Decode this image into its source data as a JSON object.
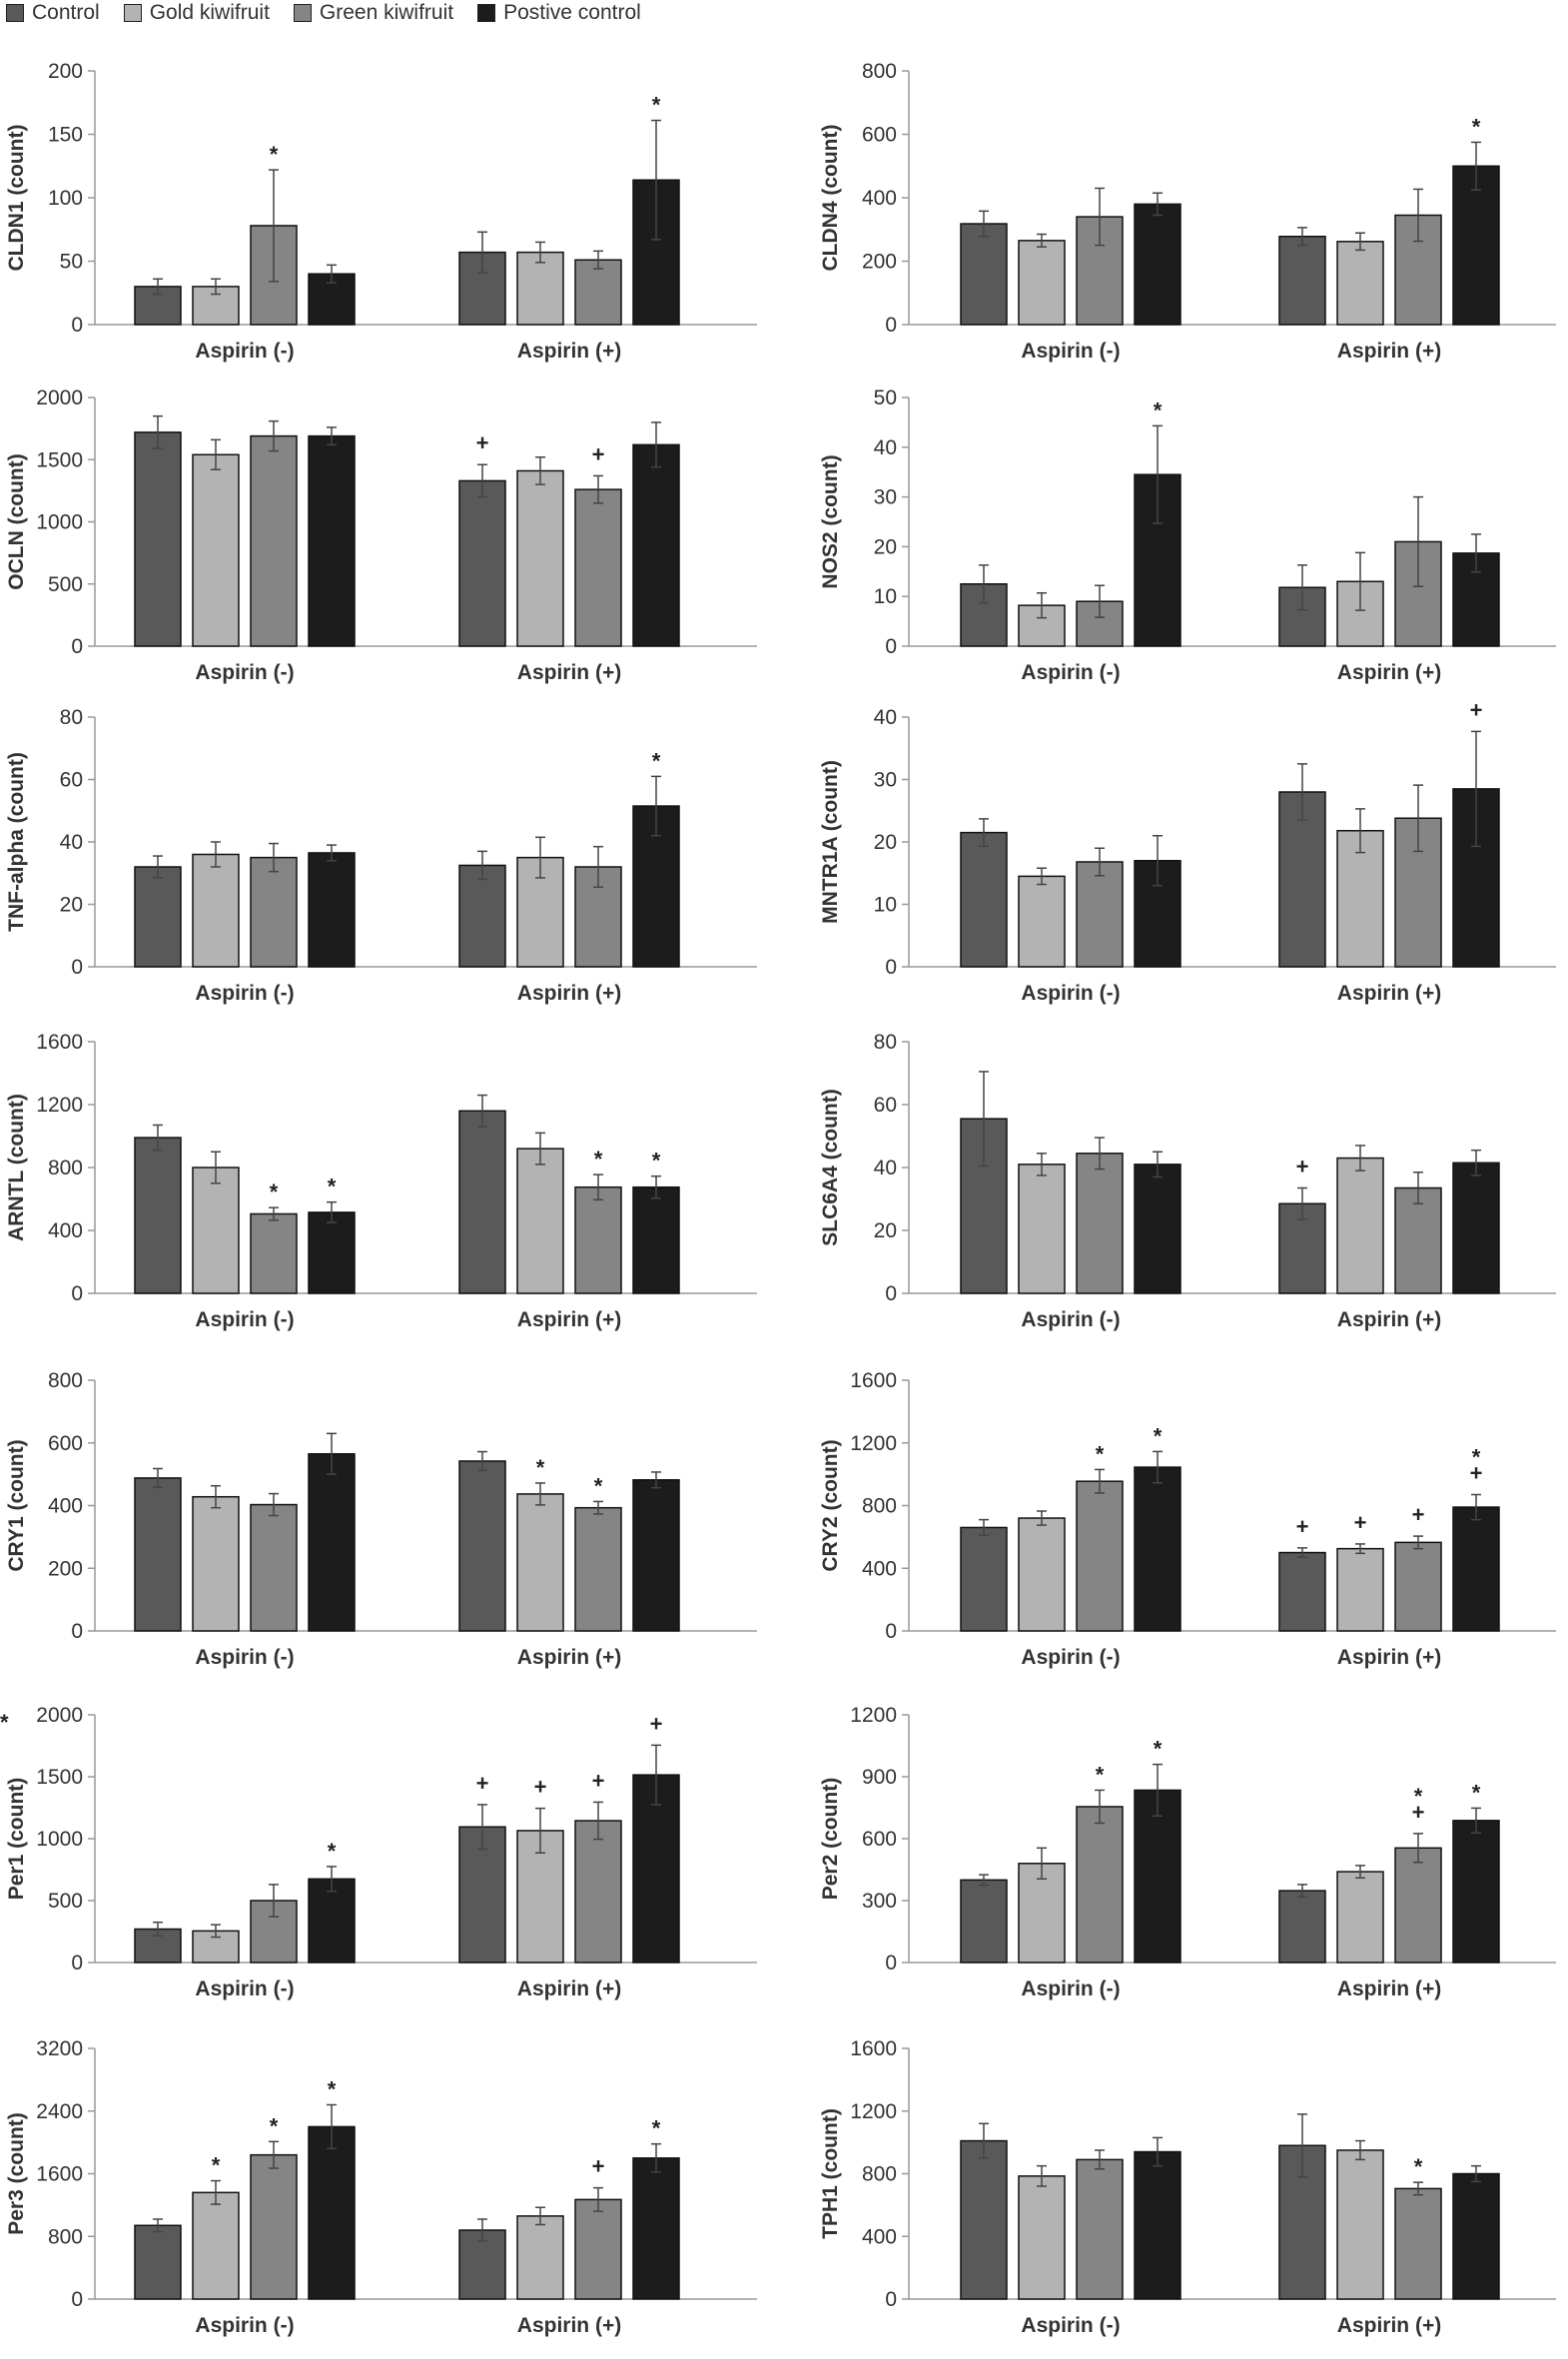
{
  "legend": {
    "items": [
      {
        "label": "Control",
        "color": "#595959"
      },
      {
        "label": "Gold kiwifruit",
        "color": "#b3b3b3"
      },
      {
        "label": "Green kiwifruit",
        "color": "#858585"
      },
      {
        "label": "Postive control",
        "color": "#1c1c1c"
      }
    ]
  },
  "stray_mark": "*",
  "chart_data": [
    {
      "type": "bar",
      "ylabel": "CLDN1 (count)",
      "ylim": [
        0,
        200
      ],
      "yticks": [
        0,
        50,
        100,
        150,
        200
      ],
      "categories": [
        "Aspirin (-)",
        "Aspirin (+)"
      ],
      "series": [
        {
          "name": "Control",
          "values": [
            30,
            57
          ],
          "errors": [
            6,
            16
          ],
          "marks": [
            "",
            ""
          ]
        },
        {
          "name": "Gold kiwifruit",
          "values": [
            30,
            57
          ],
          "errors": [
            6,
            8
          ],
          "marks": [
            "",
            ""
          ]
        },
        {
          "name": "Green kiwifruit",
          "values": [
            78,
            51
          ],
          "errors": [
            44,
            7
          ],
          "marks": [
            "*",
            ""
          ]
        },
        {
          "name": "Postive control",
          "values": [
            40,
            114
          ],
          "errors": [
            7,
            47
          ],
          "marks": [
            "",
            "*"
          ]
        }
      ]
    },
    {
      "type": "bar",
      "ylabel": "CLDN4 (count)",
      "ylim": [
        0,
        800
      ],
      "yticks": [
        0,
        200,
        400,
        600,
        800
      ],
      "categories": [
        "Aspirin (-)",
        "Aspirin (+)"
      ],
      "series": [
        {
          "name": "Control",
          "values": [
            318,
            278
          ],
          "errors": [
            40,
            28
          ],
          "marks": [
            "",
            ""
          ]
        },
        {
          "name": "Gold kiwifruit",
          "values": [
            265,
            262
          ],
          "errors": [
            20,
            27
          ],
          "marks": [
            "",
            ""
          ]
        },
        {
          "name": "Green kiwifruit",
          "values": [
            340,
            345
          ],
          "errors": [
            90,
            82
          ],
          "marks": [
            "",
            ""
          ]
        },
        {
          "name": "Postive control",
          "values": [
            380,
            500
          ],
          "errors": [
            35,
            75
          ],
          "marks": [
            "",
            "*"
          ]
        }
      ]
    },
    {
      "type": "bar",
      "ylabel": "OCLN (count)",
      "ylim": [
        0,
        2000
      ],
      "yticks": [
        0,
        500,
        1000,
        1500,
        2000
      ],
      "categories": [
        "Aspirin (-)",
        "Aspirin (+)"
      ],
      "series": [
        {
          "name": "Control",
          "values": [
            1720,
            1330
          ],
          "errors": [
            130,
            130
          ],
          "marks": [
            "",
            "+"
          ]
        },
        {
          "name": "Gold kiwifruit",
          "values": [
            1540,
            1410
          ],
          "errors": [
            120,
            110
          ],
          "marks": [
            "",
            ""
          ]
        },
        {
          "name": "Green kiwifruit",
          "values": [
            1690,
            1260
          ],
          "errors": [
            120,
            110
          ],
          "marks": [
            "",
            "+"
          ]
        },
        {
          "name": "Postive control",
          "values": [
            1690,
            1620
          ],
          "errors": [
            70,
            180
          ],
          "marks": [
            "",
            ""
          ]
        }
      ]
    },
    {
      "type": "bar",
      "ylabel": "NOS2 (count)",
      "ylim": [
        0,
        50
      ],
      "yticks": [
        0,
        10,
        20,
        30,
        40,
        50
      ],
      "categories": [
        "Aspirin (-)",
        "Aspirin (+)"
      ],
      "series": [
        {
          "name": "Control",
          "values": [
            12.5,
            11.8
          ],
          "errors": [
            3.8,
            4.5
          ],
          "marks": [
            "",
            ""
          ]
        },
        {
          "name": "Gold kiwifruit",
          "values": [
            8.2,
            13
          ],
          "errors": [
            2.5,
            5.8
          ],
          "marks": [
            "",
            ""
          ]
        },
        {
          "name": "Green kiwifruit",
          "values": [
            9,
            21
          ],
          "errors": [
            3.2,
            9
          ],
          "marks": [
            "",
            ""
          ]
        },
        {
          "name": "Postive control",
          "values": [
            34.5,
            18.7
          ],
          "errors": [
            9.8,
            3.8
          ],
          "marks": [
            "*",
            ""
          ]
        }
      ]
    },
    {
      "type": "bar",
      "ylabel": "TNF-alpha (count)",
      "ylim": [
        0,
        80
      ],
      "yticks": [
        0,
        20,
        40,
        60,
        80
      ],
      "categories": [
        "Aspirin (-)",
        "Aspirin (+)"
      ],
      "series": [
        {
          "name": "Control",
          "values": [
            32,
            32.5
          ],
          "errors": [
            3.5,
            4.5
          ],
          "marks": [
            "",
            ""
          ]
        },
        {
          "name": "Gold kiwifruit",
          "values": [
            36,
            35
          ],
          "errors": [
            4,
            6.5
          ],
          "marks": [
            "",
            ""
          ]
        },
        {
          "name": "Green kiwifruit",
          "values": [
            35,
            32
          ],
          "errors": [
            4.5,
            6.5
          ],
          "marks": [
            "",
            ""
          ]
        },
        {
          "name": "Postive control",
          "values": [
            36.5,
            51.5
          ],
          "errors": [
            2.5,
            9.5
          ],
          "marks": [
            "",
            "*"
          ]
        }
      ]
    },
    {
      "type": "bar",
      "ylabel": "MNTR1A (count)",
      "ylim": [
        0,
        40
      ],
      "yticks": [
        0,
        10,
        20,
        30,
        40
      ],
      "categories": [
        "Aspirin (-)",
        "Aspirin (+)"
      ],
      "series": [
        {
          "name": "Control",
          "values": [
            21.5,
            28
          ],
          "errors": [
            2.2,
            4.5
          ],
          "marks": [
            "",
            ""
          ]
        },
        {
          "name": "Gold kiwifruit",
          "values": [
            14.5,
            21.8
          ],
          "errors": [
            1.3,
            3.5
          ],
          "marks": [
            "",
            ""
          ]
        },
        {
          "name": "Green kiwifruit",
          "values": [
            16.8,
            23.8
          ],
          "errors": [
            2.2,
            5.3
          ],
          "marks": [
            "",
            ""
          ]
        },
        {
          "name": "Postive control",
          "values": [
            17,
            28.5
          ],
          "errors": [
            4,
            9.2
          ],
          "marks": [
            "",
            "+"
          ]
        }
      ]
    },
    {
      "type": "bar",
      "ylabel": "ARNTL (count)",
      "ylim": [
        0,
        1600
      ],
      "yticks": [
        0,
        400,
        800,
        1200,
        1600
      ],
      "categories": [
        "Aspirin (-)",
        "Aspirin (+)"
      ],
      "series": [
        {
          "name": "Control",
          "values": [
            990,
            1160
          ],
          "errors": [
            80,
            100
          ],
          "marks": [
            "",
            ""
          ]
        },
        {
          "name": "Gold kiwifruit",
          "values": [
            800,
            920
          ],
          "errors": [
            100,
            100
          ],
          "marks": [
            "",
            ""
          ]
        },
        {
          "name": "Green kiwifruit",
          "values": [
            505,
            675
          ],
          "errors": [
            40,
            80
          ],
          "marks": [
            "*",
            "*"
          ]
        },
        {
          "name": "Postive control",
          "values": [
            515,
            675
          ],
          "errors": [
            65,
            70
          ],
          "marks": [
            "*",
            "*"
          ]
        }
      ]
    },
    {
      "type": "bar",
      "ylabel": "SLC6A4 (count)",
      "ylim": [
        0,
        80
      ],
      "yticks": [
        0,
        20,
        40,
        60,
        80
      ],
      "categories": [
        "Aspirin (-)",
        "Aspirin (+)"
      ],
      "series": [
        {
          "name": "Control",
          "values": [
            55.5,
            28.5
          ],
          "errors": [
            15,
            5
          ],
          "marks": [
            "",
            "+"
          ]
        },
        {
          "name": "Gold kiwifruit",
          "values": [
            41,
            43
          ],
          "errors": [
            3.5,
            4
          ],
          "marks": [
            "",
            ""
          ]
        },
        {
          "name": "Green kiwifruit",
          "values": [
            44.5,
            33.5
          ],
          "errors": [
            5,
            5
          ],
          "marks": [
            "",
            ""
          ]
        },
        {
          "name": "Postive control",
          "values": [
            41,
            41.5
          ],
          "errors": [
            4,
            4
          ],
          "marks": [
            "",
            ""
          ]
        }
      ]
    },
    {
      "type": "bar",
      "ylabel": "CRY1 (count)",
      "ylim": [
        0,
        800
      ],
      "yticks": [
        0,
        200,
        400,
        600,
        800
      ],
      "categories": [
        "Aspirin (-)",
        "Aspirin (+)"
      ],
      "series": [
        {
          "name": "Control",
          "values": [
            488,
            542
          ],
          "errors": [
            30,
            30
          ],
          "marks": [
            "",
            ""
          ]
        },
        {
          "name": "Gold kiwifruit",
          "values": [
            428,
            437
          ],
          "errors": [
            35,
            35
          ],
          "marks": [
            "",
            "*"
          ]
        },
        {
          "name": "Green kiwifruit",
          "values": [
            403,
            393
          ],
          "errors": [
            35,
            20
          ],
          "marks": [
            "",
            "*"
          ]
        },
        {
          "name": "Postive control",
          "values": [
            565,
            482
          ],
          "errors": [
            65,
            25
          ],
          "marks": [
            "",
            ""
          ]
        }
      ]
    },
    {
      "type": "bar",
      "ylabel": "CRY2 (count)",
      "ylim": [
        0,
        1600
      ],
      "yticks": [
        0,
        400,
        800,
        1200,
        1600
      ],
      "categories": [
        "Aspirin (-)",
        "Aspirin (+)"
      ],
      "series": [
        {
          "name": "Control",
          "values": [
            660,
            500
          ],
          "errors": [
            50,
            30
          ],
          "marks": [
            "",
            "+"
          ]
        },
        {
          "name": "Gold kiwifruit",
          "values": [
            720,
            525
          ],
          "errors": [
            45,
            30
          ],
          "marks": [
            "",
            "+"
          ]
        },
        {
          "name": "Green kiwifruit",
          "values": [
            955,
            565
          ],
          "errors": [
            75,
            40
          ],
          "marks": [
            "*",
            "+"
          ]
        },
        {
          "name": "Postive control",
          "values": [
            1045,
            790
          ],
          "errors": [
            100,
            80
          ],
          "marks": [
            "*",
            "*\n+"
          ]
        }
      ]
    },
    {
      "type": "bar",
      "ylabel": "Per1 (count)",
      "ylim": [
        0,
        2000
      ],
      "yticks": [
        0,
        500,
        1000,
        1500,
        2000
      ],
      "categories": [
        "Aspirin (-)",
        "Aspirin (+)"
      ],
      "series": [
        {
          "name": "Control",
          "values": [
            270,
            1095
          ],
          "errors": [
            55,
            180
          ],
          "marks": [
            "",
            "+"
          ]
        },
        {
          "name": "Gold kiwifruit",
          "values": [
            255,
            1065
          ],
          "errors": [
            50,
            180
          ],
          "marks": [
            "",
            "+"
          ]
        },
        {
          "name": "Green kiwifruit",
          "values": [
            500,
            1145
          ],
          "errors": [
            130,
            150
          ],
          "marks": [
            "",
            "+"
          ]
        },
        {
          "name": "Postive control",
          "values": [
            675,
            1515
          ],
          "errors": [
            100,
            240
          ],
          "marks": [
            "*",
            "+"
          ]
        }
      ]
    },
    {
      "type": "bar",
      "ylabel": "Per2 (count)",
      "ylim": [
        0,
        1200
      ],
      "yticks": [
        0,
        300,
        600,
        900,
        1200
      ],
      "categories": [
        "Aspirin (-)",
        "Aspirin (+)"
      ],
      "series": [
        {
          "name": "Control",
          "values": [
            400,
            348
          ],
          "errors": [
            25,
            30
          ],
          "marks": [
            "",
            ""
          ]
        },
        {
          "name": "Gold kiwifruit",
          "values": [
            480,
            440
          ],
          "errors": [
            75,
            30
          ],
          "marks": [
            "",
            ""
          ]
        },
        {
          "name": "Green kiwifruit",
          "values": [
            755,
            555
          ],
          "errors": [
            80,
            70
          ],
          "marks": [
            "*",
            "*\n+"
          ]
        },
        {
          "name": "Postive control",
          "values": [
            835,
            688
          ],
          "errors": [
            125,
            60
          ],
          "marks": [
            "*",
            "*"
          ]
        }
      ]
    },
    {
      "type": "bar",
      "ylabel": "Per3 (count)",
      "ylim": [
        0,
        3200
      ],
      "yticks": [
        0,
        800,
        1600,
        2400,
        3200
      ],
      "categories": [
        "Aspirin (-)",
        "Aspirin (+)"
      ],
      "series": [
        {
          "name": "Control",
          "values": [
            940,
            880
          ],
          "errors": [
            80,
            140
          ],
          "marks": [
            "",
            ""
          ]
        },
        {
          "name": "Gold kiwifruit",
          "values": [
            1360,
            1060
          ],
          "errors": [
            150,
            110
          ],
          "marks": [
            "*",
            ""
          ]
        },
        {
          "name": "Green kiwifruit",
          "values": [
            1840,
            1270
          ],
          "errors": [
            170,
            150
          ],
          "marks": [
            "*",
            "+"
          ]
        },
        {
          "name": "Postive control",
          "values": [
            2200,
            1800
          ],
          "errors": [
            280,
            180
          ],
          "marks": [
            "*",
            "*"
          ]
        }
      ]
    },
    {
      "type": "bar",
      "ylabel": "TPH1 (count)",
      "ylim": [
        0,
        1600
      ],
      "yticks": [
        0,
        400,
        800,
        1200,
        1600
      ],
      "categories": [
        "Aspirin (-)",
        "Aspirin (+)"
      ],
      "series": [
        {
          "name": "Control",
          "values": [
            1010,
            980
          ],
          "errors": [
            110,
            200
          ],
          "marks": [
            "",
            ""
          ]
        },
        {
          "name": "Gold kiwifruit",
          "values": [
            785,
            950
          ],
          "errors": [
            65,
            60
          ],
          "marks": [
            "",
            ""
          ]
        },
        {
          "name": "Green kiwifruit",
          "values": [
            890,
            705
          ],
          "errors": [
            60,
            40
          ],
          "marks": [
            "",
            "*"
          ]
        },
        {
          "name": "Postive control",
          "values": [
            940,
            800
          ],
          "errors": [
            90,
            50
          ],
          "marks": [
            "",
            ""
          ]
        }
      ]
    }
  ]
}
